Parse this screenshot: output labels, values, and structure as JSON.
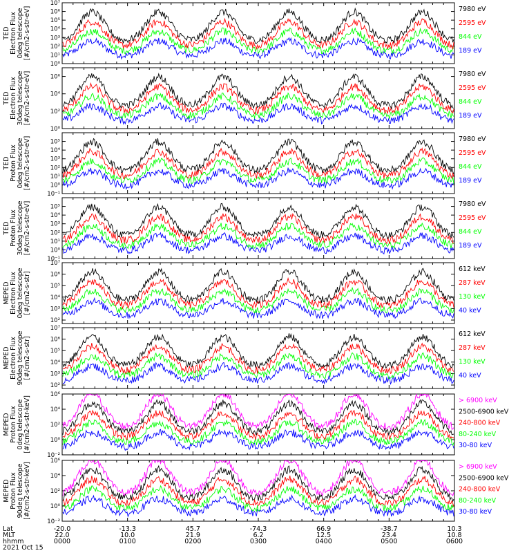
{
  "chart_data": [
    {
      "type": "line",
      "instrument": "TED",
      "title_lines": [
        "TED",
        "Electron Flux",
        "0deg telescope",
        "[#/cm2-s-str-eV]"
      ],
      "ylim_exp": [
        0,
        7
      ],
      "y_ticks_exp": [
        0,
        1,
        2,
        3,
        4,
        5,
        6,
        7
      ],
      "log_scale": true,
      "legend": [
        {
          "label": "7980 eV",
          "color": "#000000"
        },
        {
          "label": "2595 eV",
          "color": "#ff0000"
        },
        {
          "label": "844 eV",
          "color": "#00ff00"
        },
        {
          "label": "189 eV",
          "color": "#0000ff"
        }
      ]
    },
    {
      "type": "line",
      "instrument": "TED",
      "title_lines": [
        "TED",
        "Electron Flux",
        "30deg telescope",
        "[#/cm2-s-str-eV]"
      ],
      "ylim_exp": [
        0,
        7
      ],
      "y_ticks_exp": [
        0,
        2,
        4,
        6
      ],
      "log_scale": true,
      "legend": [
        {
          "label": "7980 eV",
          "color": "#000000"
        },
        {
          "label": "2595 eV",
          "color": "#ff0000"
        },
        {
          "label": "844 eV",
          "color": "#00ff00"
        },
        {
          "label": "189 eV",
          "color": "#0000ff"
        }
      ]
    },
    {
      "type": "line",
      "instrument": "TED",
      "title_lines": [
        "TED",
        "Proton Flux",
        "0deg telescope",
        "[#/cm2-s-str-eV]"
      ],
      "ylim_exp": [
        -1,
        6
      ],
      "y_ticks_exp": [
        -1,
        0,
        1,
        2,
        3,
        4,
        5
      ],
      "log_scale": true,
      "legend": [
        {
          "label": "7980 eV",
          "color": "#000000"
        },
        {
          "label": "2595 eV",
          "color": "#ff0000"
        },
        {
          "label": "844 eV",
          "color": "#00ff00"
        },
        {
          "label": "189 eV",
          "color": "#0000ff"
        }
      ]
    },
    {
      "type": "line",
      "instrument": "TED",
      "title_lines": [
        "TED",
        "Proton Flux",
        "30deg telescope",
        "[#/cm2-s-str-eV]"
      ],
      "ylim_exp": [
        -1,
        6
      ],
      "y_ticks_exp": [
        -1,
        0,
        1,
        2,
        3,
        4,
        5
      ],
      "log_scale": true,
      "legend": [
        {
          "label": "7980 eV",
          "color": "#000000"
        },
        {
          "label": "2595 eV",
          "color": "#ff0000"
        },
        {
          "label": "844 eV",
          "color": "#00ff00"
        },
        {
          "label": "189 eV",
          "color": "#0000ff"
        }
      ]
    },
    {
      "type": "line",
      "instrument": "MEPED",
      "title_lines": [
        "MEPED",
        "Electron Flux",
        "0deg telescope",
        "[#/cm2-s-str]"
      ],
      "ylim_exp": [
        1.7,
        7
      ],
      "y_ticks_exp": [
        2,
        3,
        4,
        5,
        6,
        7
      ],
      "log_scale": true,
      "legend": [
        {
          "label": "612 keV",
          "color": "#000000"
        },
        {
          "label": "287 keV",
          "color": "#ff0000"
        },
        {
          "label": "130 keV",
          "color": "#00ff00"
        },
        {
          "label": "40 keV",
          "color": "#0000ff"
        }
      ]
    },
    {
      "type": "line",
      "instrument": "MEPED",
      "title_lines": [
        "MEPED",
        "Electron Flux",
        "90deg telescope",
        "[#/cm2-s-str]"
      ],
      "ylim_exp": [
        1.7,
        7
      ],
      "y_ticks_exp": [
        2,
        3,
        4,
        5,
        6,
        7
      ],
      "log_scale": true,
      "legend": [
        {
          "label": "612 keV",
          "color": "#000000"
        },
        {
          "label": "287 keV",
          "color": "#ff0000"
        },
        {
          "label": "130 keV",
          "color": "#00ff00"
        },
        {
          "label": "40 keV",
          "color": "#0000ff"
        }
      ]
    },
    {
      "type": "line",
      "instrument": "MEPED",
      "title_lines": [
        "MEPED",
        "Proton Flux",
        "0deg telescope",
        "[#/cm2-s-str-keV]"
      ],
      "ylim_exp": [
        -2,
        6
      ],
      "y_ticks_exp": [
        -2,
        0,
        2,
        4,
        6
      ],
      "log_scale": true,
      "legend": [
        {
          "label": "> 6900 keV",
          "color": "#ff00ff"
        },
        {
          "label": "2500-6900 keV",
          "color": "#000000"
        },
        {
          "label": "240-800 keV",
          "color": "#ff0000"
        },
        {
          "label": "80-240 keV",
          "color": "#00ff00"
        },
        {
          "label": "30-80 keV",
          "color": "#0000ff"
        }
      ]
    },
    {
      "type": "line",
      "instrument": "MEPED",
      "title_lines": [
        "MEPED",
        "Proton Flux",
        "90deg telescope",
        "[#/cm2-s-str-keV]"
      ],
      "ylim_exp": [
        -2,
        6
      ],
      "y_ticks_exp": [
        -2,
        0,
        2,
        4,
        6
      ],
      "log_scale": true,
      "legend": [
        {
          "label": "> 6900 keV",
          "color": "#ff00ff"
        },
        {
          "label": "2500-6900 keV",
          "color": "#000000"
        },
        {
          "label": "240-800 keV",
          "color": "#ff0000"
        },
        {
          "label": "80-240 keV",
          "color": "#00ff00"
        },
        {
          "label": "30-80 keV",
          "color": "#0000ff"
        }
      ]
    }
  ],
  "x_axis": {
    "time_range": [
      "0000",
      "0600"
    ],
    "rows": [
      {
        "label": "Lat",
        "values": [
          "-20.0",
          "-13.3",
          "45.7",
          "-74.3",
          "66.9",
          "-38.7",
          "10.3"
        ]
      },
      {
        "label": "MLT",
        "values": [
          "22.0",
          "10.0",
          "21.9",
          "6.2",
          "12.5",
          "23.4",
          "10.8"
        ]
      },
      {
        "label": "hhmm",
        "values": [
          "0000",
          "0100",
          "0200",
          "0300",
          "0400",
          "0500",
          "0600"
        ]
      }
    ],
    "date": "2021 Oct 15"
  }
}
